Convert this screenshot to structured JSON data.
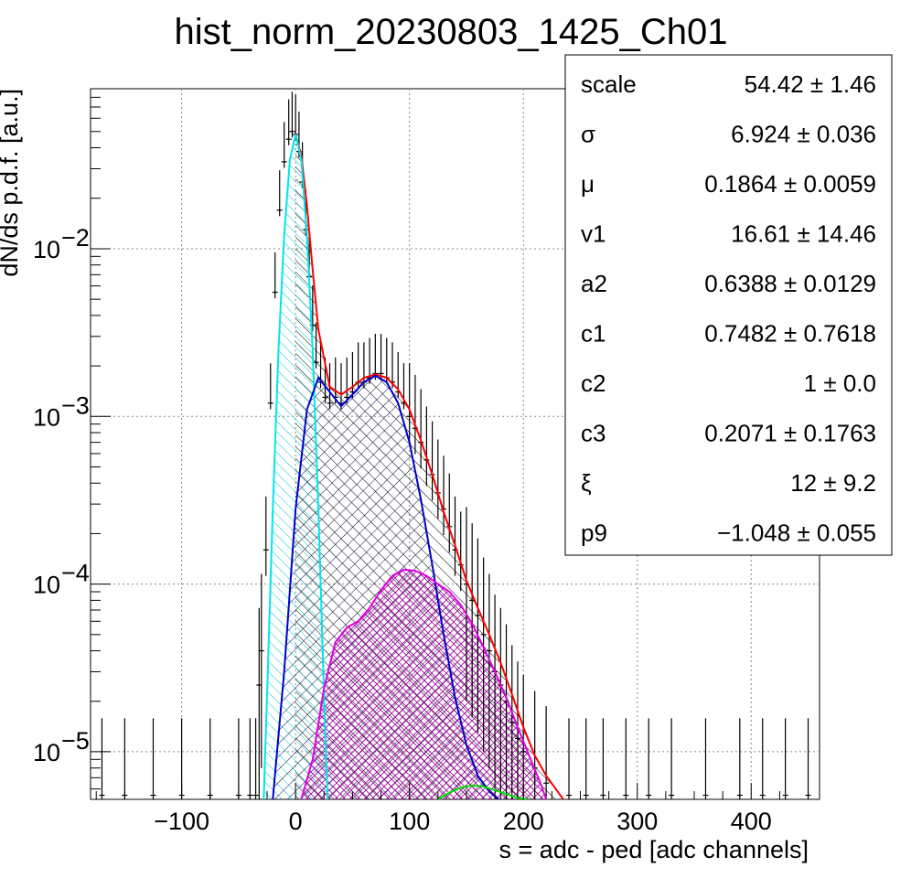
{
  "chart_data": {
    "type": "line",
    "title": "hist_norm_20230803_1425_Ch01",
    "xlabel": "s = adc - ped [adc channels]",
    "ylabel": "dN/ds p.d.f. [a.u.]",
    "xlim": [
      -180,
      460
    ],
    "ylim": [
      5.2e-06,
      0.09
    ],
    "yscale": "log",
    "grid": true,
    "x_ticks": [
      -100,
      0,
      100,
      200,
      300,
      400
    ],
    "x_tick_labels": [
      "−100",
      "0",
      "100",
      "200",
      "300",
      "400"
    ],
    "y_ticks": [
      {
        "value": 0.01,
        "base": "10",
        "exp": "−2"
      },
      {
        "value": 0.001,
        "base": "10",
        "exp": "−3"
      },
      {
        "value": 0.0001,
        "base": "10",
        "exp": "−4"
      },
      {
        "value": 1e-05,
        "base": "10",
        "exp": "−5"
      }
    ],
    "stats_box": {
      "placement": "top-right",
      "rows": [
        {
          "name": "scale",
          "value": "54.42 ± 1.46"
        },
        {
          "name": "σ",
          "value": "6.924 ± 0.036"
        },
        {
          "name": "μ",
          "value": "0.1864 ± 0.0059"
        },
        {
          "name": "v1",
          "value": "16.61 ± 14.46"
        },
        {
          "name": "a2",
          "value": "0.6388 ± 0.0129"
        },
        {
          "name": "c1",
          "value": "0.7482 ± 0.7618"
        },
        {
          "name": "c2",
          "value": "1 ± 0.0"
        },
        {
          "name": "c3",
          "value": "0.2071 ± 0.1763"
        },
        {
          "name": "ξ",
          "value": "12 ± 9.2"
        },
        {
          "name": "p9",
          "value": "−1.048 ± 0.055"
        }
      ]
    },
    "series": [
      {
        "key": "total_fit",
        "color": "#ff0000",
        "x": [
          0,
          5,
          10,
          15,
          20,
          30,
          40,
          50,
          60,
          70,
          80,
          90,
          100,
          110,
          120,
          130,
          140,
          150,
          160,
          170,
          180,
          190,
          200,
          210,
          220,
          230,
          235
        ],
        "y": [
          0.048,
          0.036,
          0.018,
          0.0075,
          0.0033,
          0.0015,
          0.00135,
          0.0015,
          0.0017,
          0.00178,
          0.0017,
          0.00145,
          0.0011,
          0.00072,
          0.00045,
          0.00027,
          0.00017,
          0.000105,
          7.2e-05,
          5e-05,
          3.4e-05,
          2.2e-05,
          1.4e-05,
          9.5e-06,
          7.2e-06,
          5.8e-06,
          5.2e-06
        ]
      },
      {
        "key": "pedestal",
        "color": "#00e5ee",
        "fill_color": "#00c8d8",
        "x": [
          -28,
          -25,
          -20,
          -15,
          -10,
          -5,
          0,
          5,
          10,
          15,
          20,
          25,
          28
        ],
        "y": [
          5.2e-06,
          2.2e-05,
          0.00028,
          0.0025,
          0.012,
          0.034,
          0.048,
          0.034,
          0.012,
          0.0025,
          0.00028,
          2.2e-05,
          5.2e-06
        ]
      },
      {
        "key": "single_pe",
        "color": "#0000cc",
        "fill_color": "#0a0a40",
        "x": [
          -20,
          -10,
          0,
          10,
          20,
          30,
          40,
          50,
          60,
          70,
          80,
          90,
          100,
          110,
          120,
          130,
          140,
          150,
          160,
          170,
          178
        ],
        "y": [
          5.2e-06,
          3e-05,
          0.00028,
          0.0011,
          0.0017,
          0.0014,
          0.00115,
          0.00135,
          0.0016,
          0.00175,
          0.0016,
          0.0012,
          0.0007,
          0.00032,
          0.00013,
          5e-05,
          2.1e-05,
          1.1e-05,
          7.2e-06,
          5.8e-06,
          5.2e-06
        ]
      },
      {
        "key": "double_pe",
        "color": "#e000e0",
        "fill_color": "#a000a0",
        "x": [
          5,
          15,
          25,
          35,
          45,
          55,
          65,
          75,
          85,
          95,
          105,
          115,
          125,
          135,
          145,
          155,
          165,
          175,
          185,
          195,
          205,
          215,
          220
        ],
        "y": [
          5.2e-06,
          9e-06,
          2.4e-05,
          4.5e-05,
          5.5e-05,
          6e-05,
          7.2e-05,
          9.2e-05,
          0.000112,
          0.000122,
          0.00012,
          0.000112,
          0.0001,
          9e-05,
          7.5e-05,
          5.8e-05,
          4.2e-05,
          3e-05,
          2.1e-05,
          1.4e-05,
          9.5e-06,
          6.5e-06,
          5.2e-06
        ]
      },
      {
        "key": "triple_pe",
        "color": "#00dd00",
        "x": [
          125,
          135,
          145,
          155,
          165,
          175,
          185,
          195,
          205
        ],
        "y": [
          5.2e-06,
          5.7e-06,
          6.1e-06,
          6.3e-06,
          6.2e-06,
          5.9e-06,
          5.6e-06,
          5.3e-06,
          5.2e-06
        ]
      }
    ],
    "data_points": {
      "x": [
        -170,
        -150,
        -125,
        -100,
        -75,
        -50,
        -40,
        -35,
        -32,
        -30,
        -26,
        -22,
        -18,
        -14,
        -10,
        -6,
        -3,
        0,
        3,
        6,
        9,
        12,
        15,
        18,
        22,
        26,
        30,
        35,
        40,
        45,
        50,
        55,
        60,
        65,
        70,
        75,
        80,
        85,
        90,
        95,
        100,
        105,
        110,
        115,
        120,
        125,
        130,
        135,
        140,
        145,
        150,
        155,
        160,
        165,
        170,
        175,
        180,
        185,
        190,
        195,
        200,
        210,
        220,
        240,
        255,
        270,
        290,
        310,
        330,
        360,
        390,
        410,
        430,
        450
      ],
      "y": [
        5.5e-06,
        5.5e-06,
        5.5e-06,
        5.5e-06,
        5.5e-06,
        5.5e-06,
        5.5e-06,
        5.5e-06,
        2.5e-05,
        4e-05,
        0.00016,
        0.0012,
        0.0055,
        0.017,
        0.033,
        0.045,
        0.05,
        0.048,
        0.038,
        0.025,
        0.013,
        0.0068,
        0.0035,
        0.0021,
        0.0016,
        0.0013,
        0.0012,
        0.0013,
        0.0012,
        0.0013,
        0.0014,
        0.0016,
        0.0016,
        0.0017,
        0.0018,
        0.0018,
        0.0017,
        0.0016,
        0.0014,
        0.0012,
        0.001,
        0.00085,
        0.0007,
        0.00055,
        0.00045,
        0.00035,
        0.00028,
        0.00022,
        0.00016,
        0.00013,
        0.0001,
        8e-05,
        6.5e-05,
        5e-05,
        4e-05,
        3e-05,
        2.5e-05,
        2e-05,
        1.5e-05,
        1.2e-05,
        1e-05,
        8e-06,
        6.5e-06,
        5.5e-06,
        5.5e-06,
        5.5e-06,
        5.5e-06,
        5.5e-06,
        5.5e-06,
        5.5e-06,
        5.5e-06,
        5.5e-06,
        5.5e-06,
        5.5e-06
      ]
    }
  }
}
